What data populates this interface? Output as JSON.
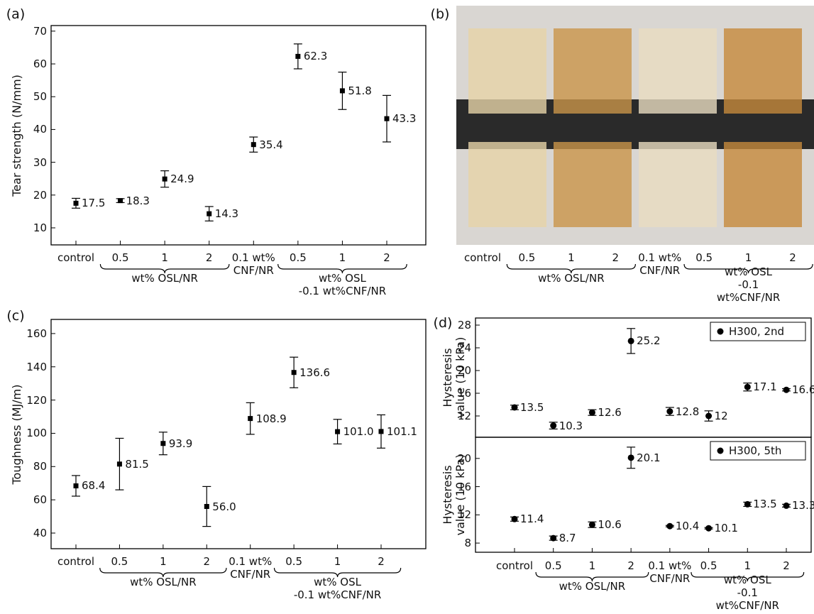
{
  "chart_data": [
    {
      "type": "errorbar",
      "label": "(a)",
      "ylabel": "Tear strength (N/mm)",
      "marker": "square",
      "categories": [
        "control",
        "0.5",
        "1",
        "2",
        "0.1 wt%\nCNF/NR",
        "0.5",
        "1",
        "2"
      ],
      "groups": [
        {
          "label": "wt% OSL/NR",
          "from": 1,
          "to": 3
        },
        {
          "label": "wt% OSL\n-0.1 wt%CNF/NR",
          "from": 5,
          "to": 7
        }
      ],
      "values": [
        17.5,
        18.3,
        24.9,
        14.3,
        35.4,
        62.3,
        51.8,
        43.3
      ],
      "errors": [
        1.5,
        0.6,
        2.5,
        2.2,
        2.3,
        3.8,
        5.7,
        7.1
      ],
      "ylim": [
        4.8,
        71.7
      ],
      "yticks": [
        10,
        20,
        30,
        40,
        50,
        60,
        70
      ]
    },
    {
      "type": "image",
      "label": "(b)",
      "categories": [
        "control",
        "0.5",
        "1",
        "2",
        "0.1 wt%\nCNF/NR",
        "0.5",
        "1",
        "2"
      ],
      "groups": [
        {
          "label": "wt% OSL/NR",
          "from": 1,
          "to": 3
        },
        {
          "label": "wt% OSL\n-0.1 wt%CNF/NR",
          "from": 5,
          "to": 7
        }
      ]
    },
    {
      "type": "errorbar",
      "label": "(c)",
      "ylabel": "Toughness (MJ/m)",
      "marker": "square",
      "categories": [
        "control",
        "0.5",
        "1",
        "2",
        "0.1 wt%\nCNF/NR",
        "0.5",
        "1",
        "2"
      ],
      "groups": [
        {
          "label": "wt% OSL/NR",
          "from": 1,
          "to": 3
        },
        {
          "label": "wt% OSL\n-0.1 wt%CNF/NR",
          "from": 5,
          "to": 7
        }
      ],
      "values": [
        68.4,
        81.5,
        93.9,
        56.0,
        108.9,
        136.6,
        101.0,
        101.1
      ],
      "value_labels": [
        "68.4",
        "81.5",
        "93.9",
        "56.0",
        "108.9",
        "136.6",
        "101.0",
        "101.1"
      ],
      "errors": [
        6.2,
        15.5,
        6.8,
        12,
        9.5,
        9.2,
        7.4,
        10
      ],
      "ylim": [
        30.6,
        168.5
      ],
      "yticks": [
        40,
        60,
        80,
        100,
        120,
        140,
        160
      ]
    },
    {
      "type": "errorbar_stacked",
      "label": "(d)",
      "marker": "circle",
      "categories": [
        "control",
        "0.5",
        "1",
        "2",
        "0.1 wt%\nCNF/NR",
        "0.5",
        "1",
        "2"
      ],
      "groups": [
        {
          "label": "wt% OSL/NR",
          "from": 1,
          "to": 3
        },
        {
          "label": "wt% OSL\n-0.1 wt%CNF/NR",
          "from": 5,
          "to": 7
        }
      ],
      "panels": [
        {
          "ylabel": "Hysteresis\nvalue (10 kPa)",
          "legend": "H300, 2nd",
          "values": [
            13.5,
            10.3,
            12.6,
            25.2,
            12.8,
            12,
            17.1,
            16.6
          ],
          "errors": [
            0.4,
            0.6,
            0.5,
            2.2,
            0.7,
            0.9,
            0.7,
            0.2
          ],
          "ylim": [
            8.25,
            29.25
          ],
          "yticks": [
            12,
            16,
            20,
            24,
            28
          ]
        },
        {
          "ylabel": "Hysteresis\nvalue (10 kPa)",
          "legend": "H300, 5th",
          "values": [
            11.4,
            8.7,
            10.6,
            20.1,
            10.4,
            10.1,
            13.5,
            13.3
          ],
          "errors": [
            0.3,
            0.3,
            0.4,
            1.5,
            0.1,
            0.1,
            0.3,
            0.2
          ],
          "ylim": [
            6.7,
            23
          ],
          "yticks": [
            8,
            12,
            16,
            20
          ]
        }
      ]
    }
  ]
}
